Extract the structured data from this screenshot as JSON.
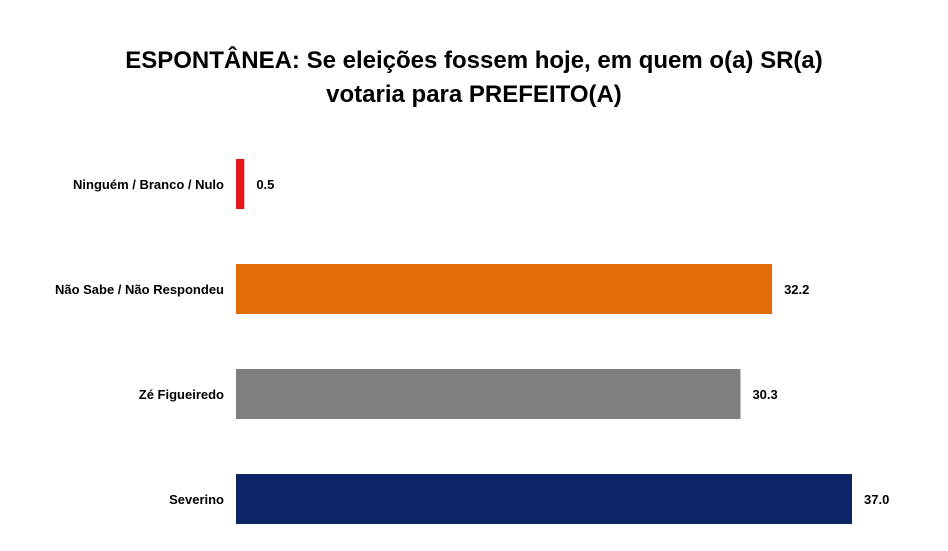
{
  "chart_data": {
    "type": "bar",
    "orientation": "horizontal",
    "title_line1": "ESPONTÂNEA: Se eleições fossem hoje, em quem o(a) SR(a)",
    "title_line2": "votaria para PREFEITO(A)",
    "categories": [
      "Ninguém / Branco / Nulo",
      "Não Sabe / Não Respondeu",
      "Zé Figueiredo",
      "Severino"
    ],
    "values": [
      0.5,
      32.2,
      30.3,
      37.0
    ],
    "value_labels": [
      "0.5",
      "32.2",
      "30.3",
      "37.0"
    ],
    "colors": [
      "#e8141b",
      "#e36c0a",
      "#7f7f7f",
      "#0c2566"
    ],
    "xlim": [
      0,
      37.0
    ],
    "grid": false,
    "legend": "none"
  }
}
